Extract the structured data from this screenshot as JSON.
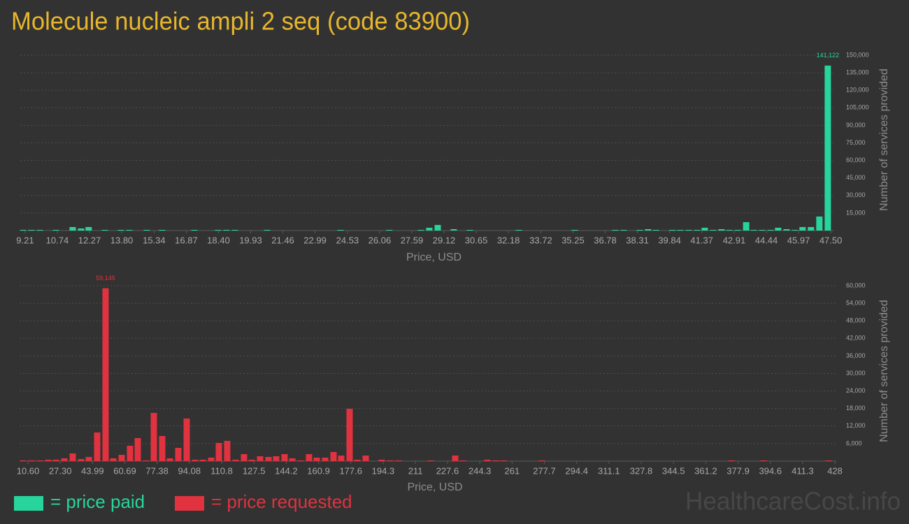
{
  "title": "Molecule nucleic ampli 2 seq (code 83900)",
  "watermark": "HealthcareCost.info",
  "chart_data": [
    {
      "type": "bar",
      "x_label": "Price, USD",
      "y_label": "Number of services provided",
      "x": [
        9.11,
        9.51,
        9.91,
        10.67,
        11.47,
        11.87,
        12.23,
        13,
        13.76,
        14.16,
        14.99,
        15.72,
        17.25,
        18.38,
        18.78,
        19.18,
        20.71,
        24.2,
        26.52,
        28.02,
        28.42,
        28.82,
        29.58,
        30.35,
        32.67,
        35.33,
        37.26,
        37.66,
        38.42,
        38.82,
        39.19,
        39.98,
        40.35,
        40.75,
        41.15,
        41.51,
        41.91,
        42.31,
        42.68,
        43.08,
        43.48,
        43.84,
        44.24,
        44.64,
        45,
        45.4,
        45.8,
        46.16,
        46.56,
        46.96,
        47.36
      ],
      "series": [
        {
          "name": "= price paid",
          "color": "#27d59c",
          "values": [
            600,
            600,
            600,
            600,
            3000,
            1800,
            3000,
            600,
            600,
            600,
            600,
            600,
            600,
            600,
            600,
            600,
            600,
            600,
            600,
            600,
            2400,
            4800,
            1200,
            600,
            600,
            600,
            600,
            600,
            600,
            1200,
            600,
            600,
            600,
            600,
            600,
            2400,
            600,
            1200,
            600,
            600,
            7200,
            600,
            600,
            600,
            2400,
            1200,
            600,
            3000,
            3000,
            12000,
            141122
          ],
          "value_labels": [
            null,
            null,
            null,
            null,
            null,
            null,
            null,
            null,
            null,
            null,
            null,
            null,
            null,
            null,
            null,
            null,
            null,
            null,
            null,
            null,
            null,
            null,
            null,
            null,
            null,
            null,
            null,
            null,
            null,
            null,
            null,
            null,
            null,
            null,
            null,
            null,
            null,
            null,
            null,
            null,
            null,
            null,
            null,
            null,
            null,
            null,
            null,
            null,
            null,
            null,
            "141,122"
          ]
        }
      ],
      "xlim": [
        8.98,
        47.63
      ],
      "xticks": [
        9.21,
        10.74,
        12.27,
        {
          "value": 13.8,
          "label": "13.80"
        },
        15.34,
        16.87,
        {
          "value": 18.4,
          "label": "18.40"
        },
        19.93,
        21.46,
        22.99,
        24.53,
        26.06,
        27.59,
        29.12,
        30.65,
        32.18,
        33.72,
        35.25,
        36.78,
        38.31,
        39.84,
        41.37,
        42.91,
        44.44,
        45.97,
        {
          "value": 47.5,
          "label": "47.50"
        }
      ],
      "ylim": [
        0,
        150000
      ],
      "yticks": [
        {
          "value": 15000,
          "label": "15,000"
        },
        {
          "value": 30000,
          "label": "30,000"
        },
        {
          "value": 45000,
          "label": "45,000"
        },
        {
          "value": 60000,
          "label": "60,000"
        },
        {
          "value": 75000,
          "label": "75,000"
        },
        {
          "value": 90000,
          "label": "90,000"
        },
        {
          "value": 105000,
          "label": "105,000"
        },
        {
          "value": 120000,
          "label": "120,000"
        },
        {
          "value": 135000,
          "label": "135,000"
        },
        {
          "value": 150000,
          "label": "150,000"
        }
      ],
      "grid": true
    },
    {
      "type": "bar",
      "x_label": "Price, USD",
      "y_label": "Number of services provided",
      "x": [
        8.07,
        12.41,
        16.75,
        21.09,
        25.07,
        29.41,
        33.75,
        38.09,
        42.07,
        46.41,
        50.74,
        54.72,
        59.06,
        63.4,
        67.38,
        71.72,
        75.7,
        80.04,
        84.02,
        88.36,
        92.7,
        97.04,
        101.02,
        105.36,
        109.33,
        113.67,
        118.01,
        122.35,
        126.33,
        130.67,
        135.01,
        138.99,
        143.33,
        147.31,
        151.65,
        155.99,
        159.97,
        164.31,
        168.65,
        172.63,
        176.97,
        180.95,
        185.29,
        193.6,
        197.94,
        202.28,
        218.92,
        231.58,
        235.56,
        248.22,
        252.55,
        256.53,
        276.42,
        374.44,
        391.07,
        424.71
      ],
      "series": [
        {
          "name": "= price requested",
          "color": "#e0323f",
          "values": [
            240,
            240,
            240,
            480,
            480,
            960,
            2630,
            720,
            1430,
            9800,
            59145,
            960,
            2150,
            5260,
            7890,
            240,
            16500,
            8600,
            960,
            4540,
            14580,
            480,
            480,
            1200,
            6220,
            6930,
            480,
            2390,
            480,
            1670,
            1430,
            1670,
            2390,
            960,
            240,
            2390,
            1200,
            1200,
            3110,
            1910,
            17900,
            480,
            1910,
            480,
            240,
            240,
            240,
            1910,
            240,
            480,
            240,
            240,
            240,
            240,
            240,
            240
          ],
          "value_labels": [
            null,
            null,
            null,
            null,
            null,
            null,
            null,
            null,
            null,
            null,
            "59,145",
            null,
            null,
            null,
            null,
            null,
            null,
            null,
            null,
            null,
            null,
            null,
            null,
            null,
            null,
            null,
            null,
            null,
            null,
            null,
            null,
            null,
            null,
            null,
            null,
            null,
            null,
            null,
            null,
            null,
            null,
            null,
            null,
            null,
            null,
            null,
            null,
            null,
            null,
            null,
            null,
            null,
            null,
            null,
            null,
            null
          ]
        }
      ],
      "xlim": [
        6.26,
        428.7
      ],
      "xticks": [
        {
          "value": 10.6,
          "label": "10.60"
        },
        {
          "value": 27.3,
          "label": "27.30"
        },
        43.99,
        60.69,
        77.38,
        94.08,
        110.8,
        127.5,
        144.2,
        160.9,
        177.6,
        194.3,
        211,
        227.6,
        244.3,
        261,
        277.7,
        294.4,
        311.1,
        327.8,
        344.5,
        361.2,
        377.9,
        394.6,
        411.3,
        428
      ],
      "ylim": [
        0,
        60000
      ],
      "yticks": [
        {
          "value": 6000,
          "label": "6,000"
        },
        {
          "value": 12000,
          "label": "12,000"
        },
        {
          "value": 18000,
          "label": "18,000"
        },
        {
          "value": 24000,
          "label": "24,000"
        },
        {
          "value": 30000,
          "label": "30,000"
        },
        {
          "value": 36000,
          "label": "36,000"
        },
        {
          "value": 42000,
          "label": "42,000"
        },
        {
          "value": 48000,
          "label": "48,000"
        },
        {
          "value": 54000,
          "label": "54,000"
        },
        {
          "value": 60000,
          "label": "60,000"
        }
      ],
      "grid": true
    }
  ]
}
